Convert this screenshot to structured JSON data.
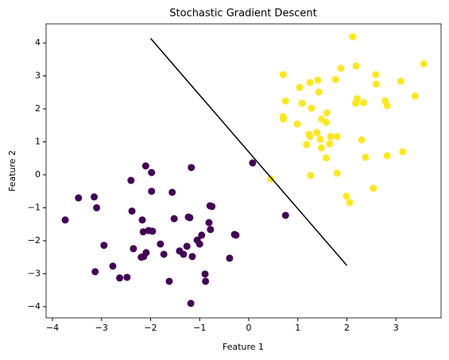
{
  "chart_data": {
    "type": "scatter",
    "title": "Stochastic Gradient Descent",
    "x_label": "Feature 1",
    "y_label": "Feature 2",
    "xlim": [
      -4.13,
      3.92
    ],
    "ylim": [
      -4.34,
      4.58
    ],
    "xticks": [
      {
        "value": -4,
        "label": "−4"
      },
      {
        "value": -3,
        "label": "−3"
      },
      {
        "value": -2,
        "label": "−2"
      },
      {
        "value": -1,
        "label": "−1"
      },
      0,
      1,
      2,
      3
    ],
    "yticks": [
      {
        "value": -4,
        "label": "−4"
      },
      {
        "value": -3,
        "label": "−3"
      },
      {
        "value": -2,
        "label": "−2"
      },
      {
        "value": -1,
        "label": "−1"
      },
      0,
      1,
      2,
      3,
      4
    ],
    "series": [
      {
        "color": "#440154",
        "x": [
          -2.1,
          -1.98,
          -1.17,
          -2.4,
          -3.47,
          -3.15,
          -3.74,
          -3.1,
          -1.98,
          -1.56,
          -2.38,
          -2.17,
          -0.79,
          -0.75,
          -1.23,
          -1.2,
          -1.52,
          -0.81,
          -2.15,
          -2.04,
          -1.96,
          -0.78,
          -0.96,
          -0.29,
          -0.26,
          -2.95,
          -1.8,
          -2.35,
          -2.09,
          -2.14,
          -2.19,
          -1.41,
          -1.26,
          -1.05,
          -1.0,
          -1.73,
          -1.33,
          -1.15,
          -0.39,
          -2.77,
          -3.13,
          -2.48,
          -2.63,
          -0.89,
          -0.88,
          -1.62,
          -1.18,
          0.08,
          0.75
        ],
        "y": [
          0.27,
          0.07,
          0.22,
          -0.17,
          -0.7,
          -0.67,
          -1.37,
          -1.0,
          -0.5,
          -0.53,
          -1.1,
          -1.37,
          -0.94,
          -0.96,
          -1.28,
          -1.3,
          -1.33,
          -1.45,
          -1.73,
          -1.69,
          -1.71,
          -1.66,
          -1.83,
          -1.81,
          -1.83,
          -2.14,
          -2.1,
          -2.24,
          -2.36,
          -2.48,
          -2.5,
          -2.31,
          -2.17,
          -1.98,
          -2.1,
          -2.41,
          -2.41,
          -2.48,
          -2.53,
          -2.77,
          -2.94,
          -3.11,
          -3.13,
          -3.01,
          -3.23,
          -3.23,
          -3.9,
          0.36,
          -1.23
        ]
      },
      {
        "color": "#fde725",
        "x": [
          2.12,
          3.57,
          0.7,
          1.88,
          2.19,
          3.1,
          1.41,
          1.25,
          1.04,
          1.77,
          2.59,
          2.6,
          1.43,
          0.75,
          1.09,
          1.28,
          2.21,
          2.18,
          2.34,
          2.78,
          2.82,
          3.39,
          1.59,
          0.7,
          0.71,
          1.48,
          1.58,
          0.99,
          1.39,
          1.23,
          1.25,
          1.67,
          1.8,
          1.46,
          2.3,
          1.18,
          1.65,
          1.48,
          3.14,
          2.38,
          2.82,
          1.58,
          1.8,
          1.26,
          0.45,
          1.99,
          2.06,
          2.54
        ],
        "y": [
          4.19,
          3.37,
          3.04,
          3.23,
          3.3,
          2.84,
          2.87,
          2.8,
          2.65,
          2.89,
          3.04,
          2.75,
          2.51,
          2.24,
          2.17,
          2.02,
          2.31,
          2.17,
          2.19,
          2.24,
          2.1,
          2.39,
          1.88,
          1.76,
          1.69,
          1.69,
          1.59,
          1.54,
          1.28,
          1.23,
          1.16,
          1.16,
          1.16,
          1.08,
          1.06,
          0.92,
          0.94,
          0.82,
          0.7,
          0.53,
          0.58,
          0.51,
          0.05,
          -0.02,
          -0.12,
          -0.65,
          -0.84,
          -0.41
        ]
      }
    ],
    "line": {
      "x": [
        -2,
        2
      ],
      "y": [
        4.14,
        -2.75
      ],
      "color": "#000000"
    }
  }
}
